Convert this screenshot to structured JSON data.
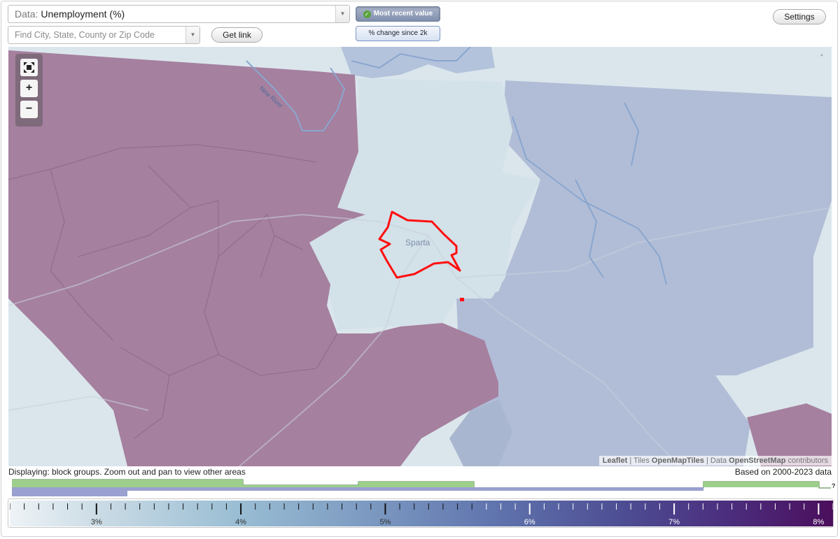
{
  "controls": {
    "data_label": "Data:",
    "data_value": "Unemployment (%)",
    "search_placeholder": "Find City, State, County or Zip Code",
    "get_link": "Get link",
    "mode_recent": "Most recent value",
    "mode_change": "% change since 2k",
    "settings": "Settings"
  },
  "map": {
    "city_label": "Sparta",
    "river_label": "New River",
    "zoom_in": "+",
    "zoom_out": "−",
    "fullscreen_icon": "fullscreen-icon",
    "attribution": {
      "leaflet": "Leaflet",
      "sep1": " | Tiles ",
      "tiles": "OpenMapTiles",
      "sep2": " | Data ",
      "data": "OpenStreetMap",
      "contributors": " contributors"
    },
    "colors": {
      "high_region": "#a5809f",
      "mid_region": "#b1bdd6",
      "low_region": "#d3e1e9",
      "highlight_outline": "#ff0000",
      "water": "#8aa6cf"
    }
  },
  "footer": {
    "displaying": "Displaying: block groups. Zoom out and pan to view other areas",
    "based_on": "Based on 2000-2023 data",
    "help": "?"
  },
  "legend": {
    "ticks": [
      "3%",
      "4%",
      "5%",
      "6%",
      "7%",
      "8%"
    ],
    "min_value": 2.4,
    "max_value": 8.1
  }
}
